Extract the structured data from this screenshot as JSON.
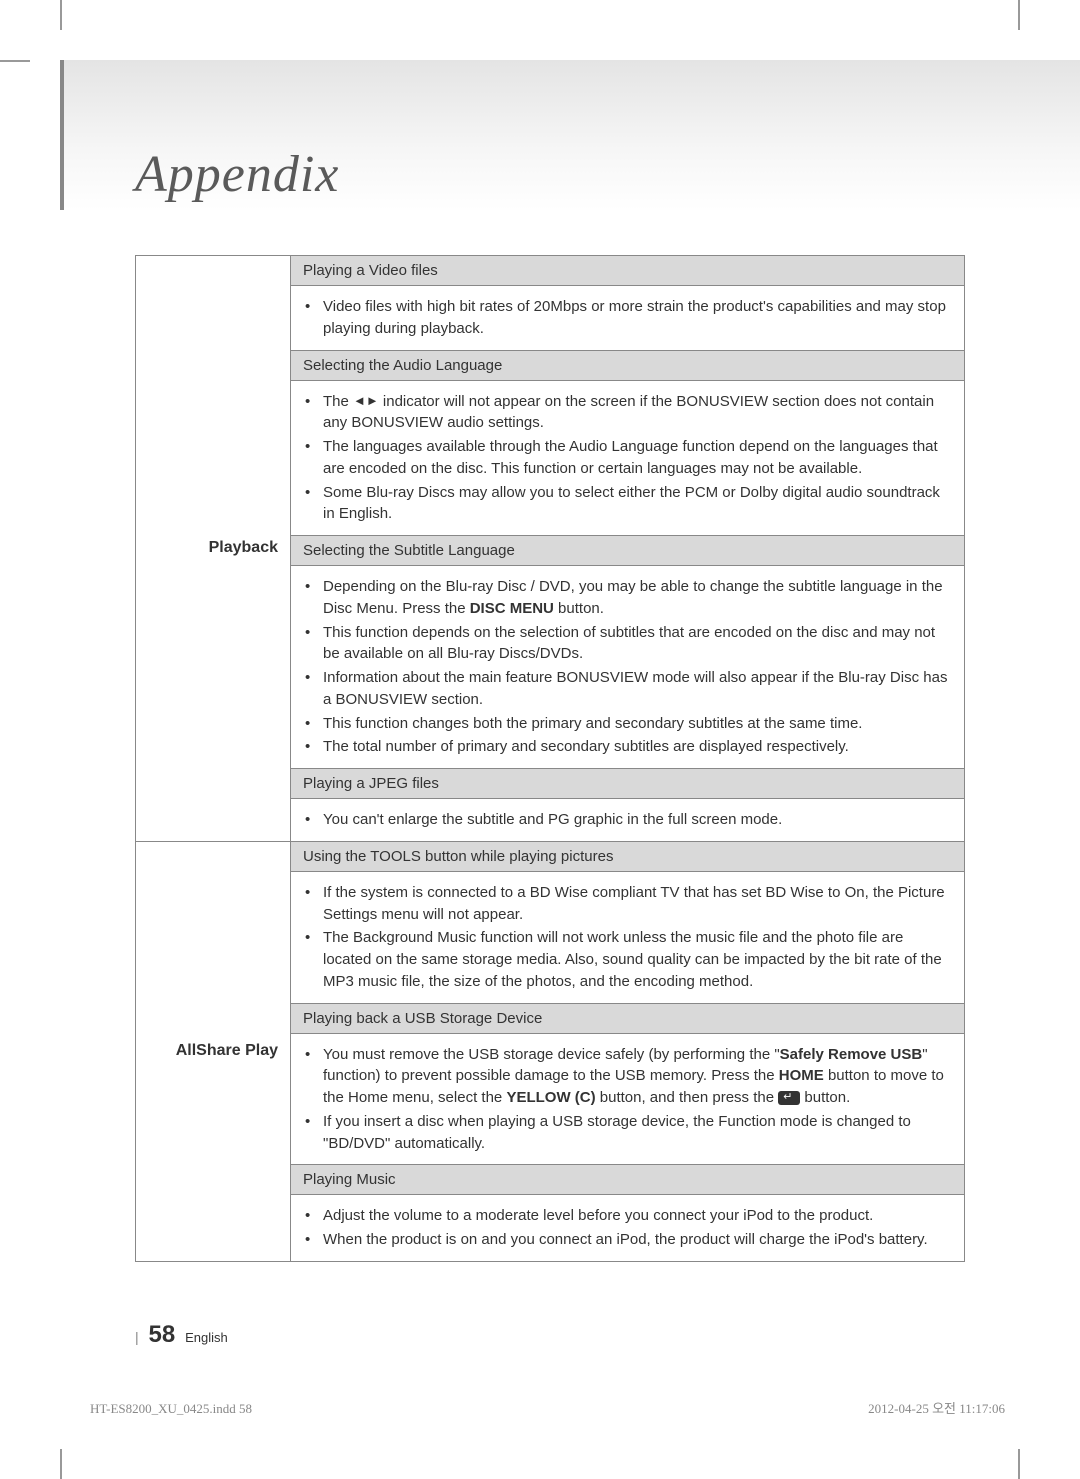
{
  "page": {
    "title": "Appendix",
    "number": "58",
    "language_label": "English",
    "print_filename": "HT-ES8200_XU_0425.indd   58",
    "print_timestamp": "2012-04-25   오전 11:17:06"
  },
  "table": {
    "playback": {
      "label": "Playback",
      "rows": [
        {
          "subhead": "Playing a Video files",
          "items": [
            "Video files with high bit rates of 20Mbps or more strain the product's capabilities and may stop playing during playback."
          ]
        },
        {
          "subhead": "Selecting the Audio Language",
          "items": [
            "The ◄► indicator will not appear on the screen if the BONUSVIEW section does not contain any BONUSVIEW audio settings.",
            "The languages available through the Audio Language function depend on the languages that are encoded on the disc. This function or certain languages may not be available.",
            "Some Blu-ray Discs may allow you to select either the PCM or Dolby digital audio soundtrack in English."
          ]
        },
        {
          "subhead": "Selecting the Subtitle Language",
          "items": [
            "Depending on the Blu-ray Disc / DVD, you may be able to change the subtitle language in the Disc Menu. Press the DISC MENU button.",
            "This function depends on the selection of subtitles that are encoded on the disc and may not be available on all Blu-ray Discs/DVDs.",
            "Information about the main feature BONUSVIEW mode will also appear if the Blu-ray Disc has a BONUSVIEW section.",
            "This function changes both the primary and secondary subtitles at the same time.",
            "The total number of primary and secondary subtitles are displayed respectively."
          ]
        },
        {
          "subhead": "Playing a JPEG files",
          "items": [
            "You can't enlarge the subtitle and PG graphic in the full screen mode."
          ]
        }
      ]
    },
    "allshare": {
      "label": "AllShare Play",
      "rows": [
        {
          "subhead": "Using the TOOLS button while playing pictures",
          "items": [
            "If the system is connected to a BD Wise compliant TV that has set BD Wise to On, the Picture Settings menu will not appear.",
            "The Background Music function will not work unless the music file and the photo file are located on the same storage media. Also, sound quality can be impacted by the bit rate of the MP3 music file, the size of the photos, and the encoding method."
          ]
        },
        {
          "subhead": "Playing back a USB Storage Device",
          "items": [
            "You must remove the USB storage device safely (by performing the \"Safely Remove USB\" function) to prevent possible damage to the USB memory. Press the HOME button to move to the Home menu, select the YELLOW (C) button, and then press the [ENTER] button.",
            "If you insert a disc when playing a USB storage device, the Function mode is changed to \"BD/DVD\" automatically."
          ]
        },
        {
          "subhead": "Playing Music",
          "items": [
            "Adjust the volume to a moderate level before you connect your iPod to the product.",
            "When the product is on and you connect an iPod, the product will charge the iPod's battery."
          ]
        }
      ]
    }
  }
}
